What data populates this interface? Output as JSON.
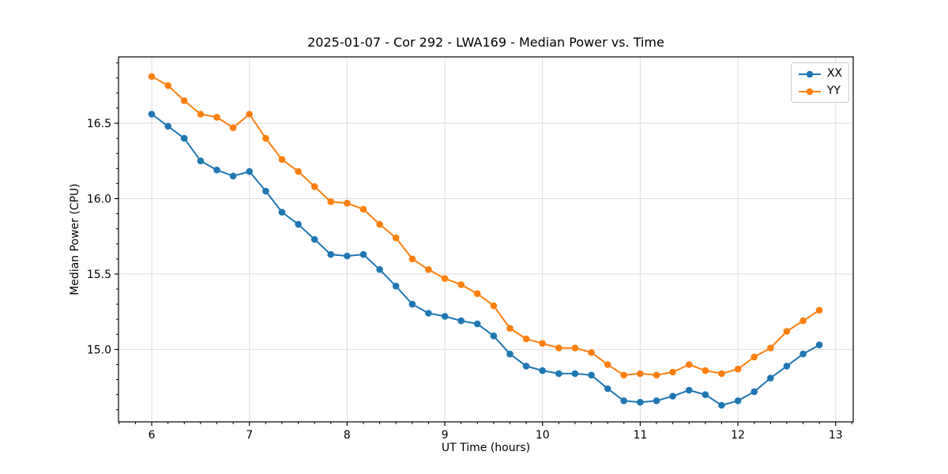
{
  "figure": {
    "background": "#ffffff"
  },
  "chart_data": {
    "type": "line",
    "title": "2025-01-07 - Cor 292 - LWA169 - Median Power vs. Time",
    "xlabel": "UT Time (hours)",
    "ylabel": "Median Power (CPU)",
    "xlim": [
      5.66,
      13.18
    ],
    "ylim": [
      14.52,
      16.94
    ],
    "xticks": [
      6,
      7,
      8,
      9,
      10,
      11,
      12,
      13
    ],
    "yticks": [
      15.0,
      15.5,
      16.0,
      16.5
    ],
    "x_minor_step": 0.16667,
    "y_minor_step": 0.1,
    "grid": true,
    "grid_color": "#dddddd",
    "axis_color": "#000000",
    "legend_position": "upper right",
    "x": [
      6.0,
      6.167,
      6.333,
      6.5,
      6.667,
      6.833,
      7.0,
      7.167,
      7.333,
      7.5,
      7.667,
      7.833,
      8.0,
      8.167,
      8.333,
      8.5,
      8.667,
      8.833,
      9.0,
      9.167,
      9.333,
      9.5,
      9.667,
      9.833,
      10.0,
      10.167,
      10.333,
      10.5,
      10.667,
      10.833,
      11.0,
      11.167,
      11.333,
      11.5,
      11.667,
      11.833,
      12.0,
      12.167,
      12.333,
      12.5,
      12.667,
      12.833
    ],
    "series": [
      {
        "name": "XX",
        "color": "#1f77b4",
        "marker": "circle",
        "values": [
          16.56,
          16.48,
          16.4,
          16.25,
          16.19,
          16.15,
          16.18,
          16.05,
          15.91,
          15.83,
          15.73,
          15.63,
          15.62,
          15.63,
          15.53,
          15.42,
          15.3,
          15.24,
          15.22,
          15.19,
          15.17,
          15.09,
          14.97,
          14.89,
          14.86,
          14.84,
          14.84,
          14.83,
          14.74,
          14.66,
          14.65,
          14.66,
          14.69,
          14.73,
          14.7,
          14.63,
          14.66,
          14.72,
          14.81,
          14.89,
          14.97,
          15.03
        ]
      },
      {
        "name": "YY",
        "color": "#ff7f0e",
        "marker": "circle",
        "values": [
          16.81,
          16.75,
          16.65,
          16.56,
          16.54,
          16.47,
          16.56,
          16.4,
          16.26,
          16.18,
          16.08,
          15.98,
          15.97,
          15.93,
          15.83,
          15.74,
          15.6,
          15.53,
          15.47,
          15.43,
          15.37,
          15.29,
          15.14,
          15.07,
          15.04,
          15.01,
          15.01,
          14.98,
          14.9,
          14.83,
          14.84,
          14.83,
          14.85,
          14.9,
          14.86,
          14.84,
          14.87,
          14.95,
          15.01,
          15.12,
          15.19,
          15.26
        ]
      }
    ]
  }
}
